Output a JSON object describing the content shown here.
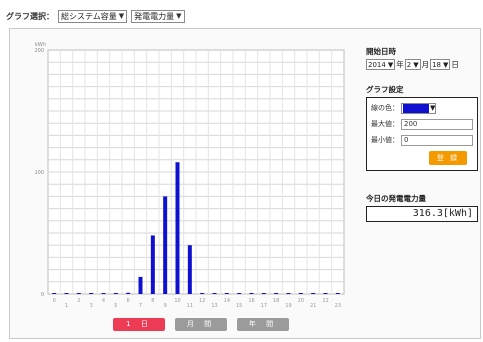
{
  "toolbar": {
    "graph_select_label": "グラフ選択：",
    "system_select": "総システム容量",
    "metric_select": "発電電力量"
  },
  "start_date": {
    "title": "開始日時",
    "year": "2014",
    "year_suffix": "年",
    "month": "2",
    "month_suffix": "月",
    "day": "18",
    "day_suffix": "日"
  },
  "graph_settings": {
    "title": "グラフ設定",
    "line_color_label": "線の色：",
    "line_color": "#1010d0",
    "max_label": "最大値：",
    "max_value": "200",
    "min_label": "最小値：",
    "min_value": "0",
    "register_button": "登 録"
  },
  "today_power": {
    "title": "今日の発電電力量",
    "value": "316.3[kWh]"
  },
  "period_buttons": [
    {
      "label": "1 日",
      "active": true
    },
    {
      "label": "月 間",
      "active": false
    },
    {
      "label": "年 間",
      "active": false
    }
  ],
  "chart_data": {
    "type": "bar",
    "ylabel": "kWh",
    "ylim": [
      0,
      200
    ],
    "yticks": [
      0,
      100,
      200
    ],
    "categories": [
      "0",
      "1",
      "2",
      "3",
      "4",
      "5",
      "6",
      "7",
      "8",
      "9",
      "10",
      "11",
      "12",
      "13",
      "14",
      "15",
      "16",
      "17",
      "18",
      "19",
      "20",
      "21",
      "22",
      "23"
    ],
    "values": [
      0,
      0,
      0,
      0,
      0,
      0,
      1,
      14,
      48,
      80,
      108,
      40,
      0,
      0,
      0,
      0,
      0,
      0,
      0,
      0,
      0,
      0,
      0,
      0
    ],
    "bar_color": "#1010d0",
    "grid": true
  }
}
